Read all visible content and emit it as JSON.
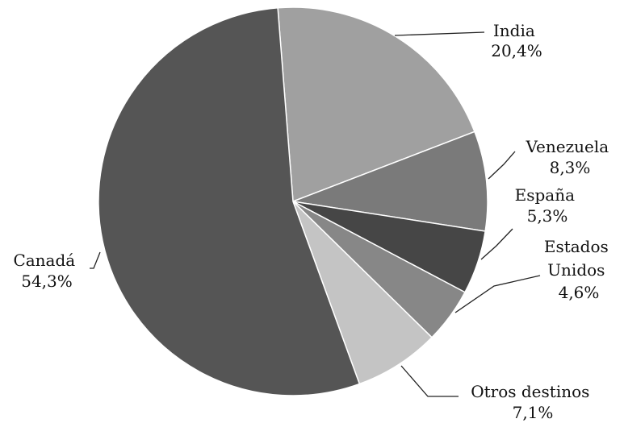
{
  "chart_data": {
    "type": "pie",
    "title": "",
    "start_angle_deg": -4.5,
    "direction": "clockwise",
    "slices": [
      {
        "label": "India",
        "display": [
          "India",
          "20,4%"
        ],
        "value": 20.4,
        "color": "#a0a0a0"
      },
      {
        "label": "Venezuela",
        "display": [
          "Venezuela",
          "8,3%"
        ],
        "value": 8.3,
        "color": "#7a7a7a"
      },
      {
        "label": "España",
        "display": [
          "España",
          "5,3%"
        ],
        "value": 5.3,
        "color": "#464646"
      },
      {
        "label": "Estados Unidos",
        "display": [
          "Estados",
          "Unidos",
          "4,6%"
        ],
        "value": 4.6,
        "color": "#878787"
      },
      {
        "label": "Otros destinos",
        "display": [
          "Otros destinos",
          "7,1%"
        ],
        "value": 7.1,
        "color": "#c4c4c4"
      },
      {
        "label": "Canadá",
        "display": [
          "Canadá",
          "54,3%"
        ],
        "value": 54.3,
        "color": "#555555"
      }
    ]
  }
}
